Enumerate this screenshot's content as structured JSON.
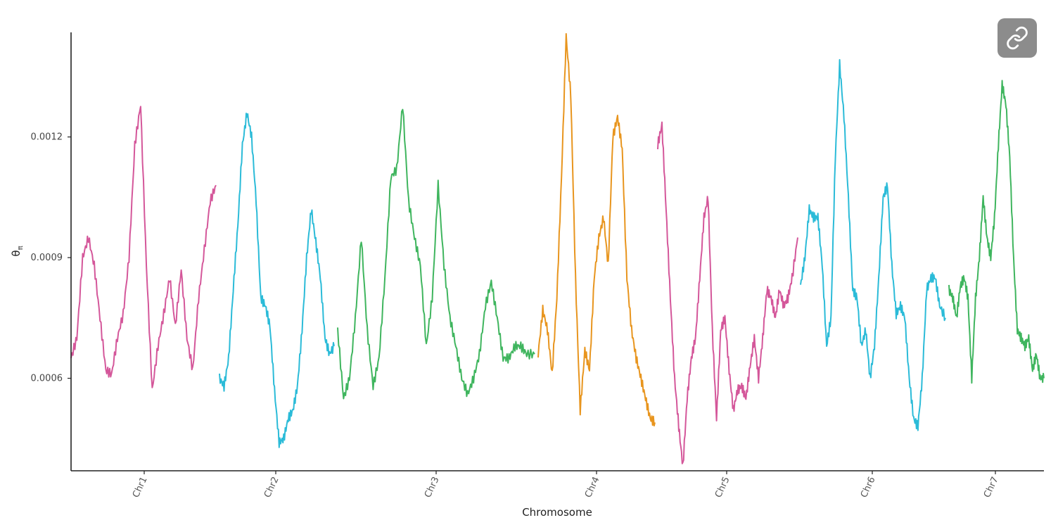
{
  "chart_data": {
    "type": "line",
    "xlabel": "Chromosome",
    "ylabel": "θπ",
    "ylabel_symbol": "θ",
    "ylabel_subscript": "π",
    "ylim": [
      0.00037,
      0.00146
    ],
    "yticks": [
      0.0006,
      0.0009,
      0.0012
    ],
    "ytick_labels": [
      "0.0006",
      "0.0009",
      "0.0012"
    ],
    "grid": false,
    "legend": "none",
    "series": [
      {
        "category": "Chr1",
        "color": "#d4579a",
        "x": [
          0,
          0.04,
          0.08,
          0.12,
          0.16,
          0.2,
          0.24,
          0.28,
          0.32,
          0.36,
          0.4,
          0.44,
          0.48,
          0.52,
          0.56,
          0.6,
          0.64,
          0.68,
          0.72,
          0.76,
          0.8,
          0.84,
          0.88,
          0.92,
          0.96,
          1
        ],
        "y": [
          0.00065,
          0.0007,
          0.0009,
          0.00095,
          0.00088,
          0.00075,
          0.00062,
          0.00061,
          0.0007,
          0.00076,
          0.0009,
          0.00118,
          0.00128,
          0.00088,
          0.00057,
          0.00068,
          0.00076,
          0.00085,
          0.00073,
          0.00087,
          0.0007,
          0.00062,
          0.0008,
          0.00092,
          0.00104,
          0.00108
        ]
      },
      {
        "category": "Chr2",
        "color": "#2bbbd8",
        "x": [
          0,
          0.04,
          0.08,
          0.12,
          0.16,
          0.2,
          0.24,
          0.28,
          0.32,
          0.36,
          0.4,
          0.44,
          0.48,
          0.52,
          0.56,
          0.6,
          0.64,
          0.68,
          0.72,
          0.76,
          0.8,
          0.84,
          0.88,
          0.92,
          0.96,
          1
        ],
        "y": [
          0.0006,
          0.00058,
          0.00065,
          0.00082,
          0.00098,
          0.00118,
          0.00126,
          0.0012,
          0.00104,
          0.0008,
          0.00078,
          0.00073,
          0.00057,
          0.00044,
          0.00045,
          0.0005,
          0.00052,
          0.00058,
          0.00072,
          0.0009,
          0.00102,
          0.00094,
          0.00085,
          0.0007,
          0.00066,
          0.00068
        ]
      },
      {
        "category": "Chr3",
        "color": "#3fb55e",
        "x": [
          0,
          0.03,
          0.06,
          0.09,
          0.12,
          0.15,
          0.18,
          0.21,
          0.24,
          0.27,
          0.3,
          0.33,
          0.36,
          0.39,
          0.42,
          0.45,
          0.48,
          0.51,
          0.54,
          0.57,
          0.6,
          0.63,
          0.66,
          0.69,
          0.72,
          0.75,
          0.78,
          0.81,
          0.84,
          0.87,
          0.9,
          0.93,
          0.96,
          1
        ],
        "y": [
          0.00072,
          0.00055,
          0.0006,
          0.00075,
          0.00095,
          0.00072,
          0.00058,
          0.00065,
          0.00085,
          0.0011,
          0.00112,
          0.00128,
          0.00104,
          0.00095,
          0.00088,
          0.00068,
          0.0008,
          0.00108,
          0.00088,
          0.00075,
          0.00068,
          0.0006,
          0.00056,
          0.0006,
          0.00066,
          0.00078,
          0.00084,
          0.00075,
          0.00065,
          0.00065,
          0.00068,
          0.00068,
          0.00066,
          0.00066
        ]
      },
      {
        "category": "Chr4",
        "color": "#e8951e",
        "x": [
          0,
          0.04,
          0.08,
          0.12,
          0.16,
          0.2,
          0.24,
          0.28,
          0.32,
          0.36,
          0.4,
          0.44,
          0.48,
          0.52,
          0.56,
          0.6,
          0.64,
          0.68,
          0.72,
          0.76,
          0.8,
          0.84,
          0.88,
          0.92,
          0.96,
          1
        ],
        "y": [
          0.00066,
          0.00077,
          0.00072,
          0.00061,
          0.0008,
          0.0011,
          0.00145,
          0.0013,
          0.00085,
          0.00052,
          0.00067,
          0.00062,
          0.00085,
          0.00095,
          0.001,
          0.00088,
          0.0012,
          0.00125,
          0.00117,
          0.00085,
          0.00072,
          0.00065,
          0.0006,
          0.00055,
          0.0005,
          0.00049
        ]
      },
      {
        "category": "Chr5",
        "color": "#d4579a",
        "x": [
          0,
          0.03,
          0.06,
          0.09,
          0.12,
          0.15,
          0.18,
          0.21,
          0.24,
          0.27,
          0.3,
          0.33,
          0.36,
          0.39,
          0.42,
          0.45,
          0.48,
          0.51,
          0.54,
          0.57,
          0.6,
          0.63,
          0.66,
          0.69,
          0.72,
          0.75,
          0.78,
          0.81,
          0.84,
          0.87,
          0.9,
          0.93,
          0.96,
          1
        ],
        "y": [
          0.00118,
          0.00123,
          0.00102,
          0.0008,
          0.0006,
          0.00048,
          0.00038,
          0.00055,
          0.00065,
          0.0007,
          0.00085,
          0.001,
          0.00105,
          0.00072,
          0.0005,
          0.00072,
          0.00075,
          0.00062,
          0.00052,
          0.00057,
          0.00058,
          0.00055,
          0.00063,
          0.0007,
          0.0006,
          0.0007,
          0.00082,
          0.0008,
          0.00075,
          0.00082,
          0.00078,
          0.0008,
          0.00085,
          0.00095
        ]
      },
      {
        "category": "Chr6",
        "color": "#2bbbd8",
        "x": [
          0,
          0.03,
          0.06,
          0.09,
          0.12,
          0.15,
          0.18,
          0.21,
          0.24,
          0.27,
          0.3,
          0.33,
          0.36,
          0.39,
          0.42,
          0.45,
          0.48,
          0.51,
          0.54,
          0.57,
          0.6,
          0.63,
          0.66,
          0.69,
          0.72,
          0.75,
          0.78,
          0.81,
          0.84,
          0.87,
          0.9,
          0.93,
          0.96,
          1
        ],
        "y": [
          0.00083,
          0.0009,
          0.00102,
          0.001,
          0.001,
          0.00088,
          0.00068,
          0.00075,
          0.00115,
          0.00138,
          0.00125,
          0.00105,
          0.00082,
          0.0008,
          0.00068,
          0.00072,
          0.0006,
          0.00068,
          0.00085,
          0.00105,
          0.00108,
          0.00088,
          0.00076,
          0.00078,
          0.00075,
          0.0006,
          0.0005,
          0.00048,
          0.0006,
          0.00082,
          0.00085,
          0.00085,
          0.00078,
          0.00075
        ]
      },
      {
        "category": "Chr7",
        "color": "#3fb55e",
        "x": [
          0,
          0.04,
          0.08,
          0.12,
          0.16,
          0.2,
          0.24,
          0.28,
          0.32,
          0.36,
          0.4,
          0.44,
          0.48,
          0.52,
          0.56,
          0.6,
          0.64,
          0.68,
          0.72,
          0.76,
          0.8,
          0.84,
          0.88,
          0.92,
          0.96,
          1
        ],
        "y": [
          0.00082,
          0.0008,
          0.00075,
          0.00083,
          0.00085,
          0.0008,
          0.0006,
          0.0008,
          0.0009,
          0.00105,
          0.00095,
          0.0009,
          0.001,
          0.00118,
          0.00133,
          0.00128,
          0.00115,
          0.0009,
          0.00072,
          0.0007,
          0.00068,
          0.0007,
          0.00062,
          0.00066,
          0.0006,
          0.0006
        ]
      }
    ],
    "categories": [
      "Chr1",
      "Chr2",
      "Chr3",
      "Chr4",
      "Chr5",
      "Chr6",
      "Chr7"
    ],
    "x_tick_labels": [
      "Chr1",
      "Chr2",
      "Chr3",
      "Chr4",
      "Chr5",
      "Chr6",
      "Chr7"
    ]
  },
  "link_button": {
    "icon": "link-icon"
  }
}
